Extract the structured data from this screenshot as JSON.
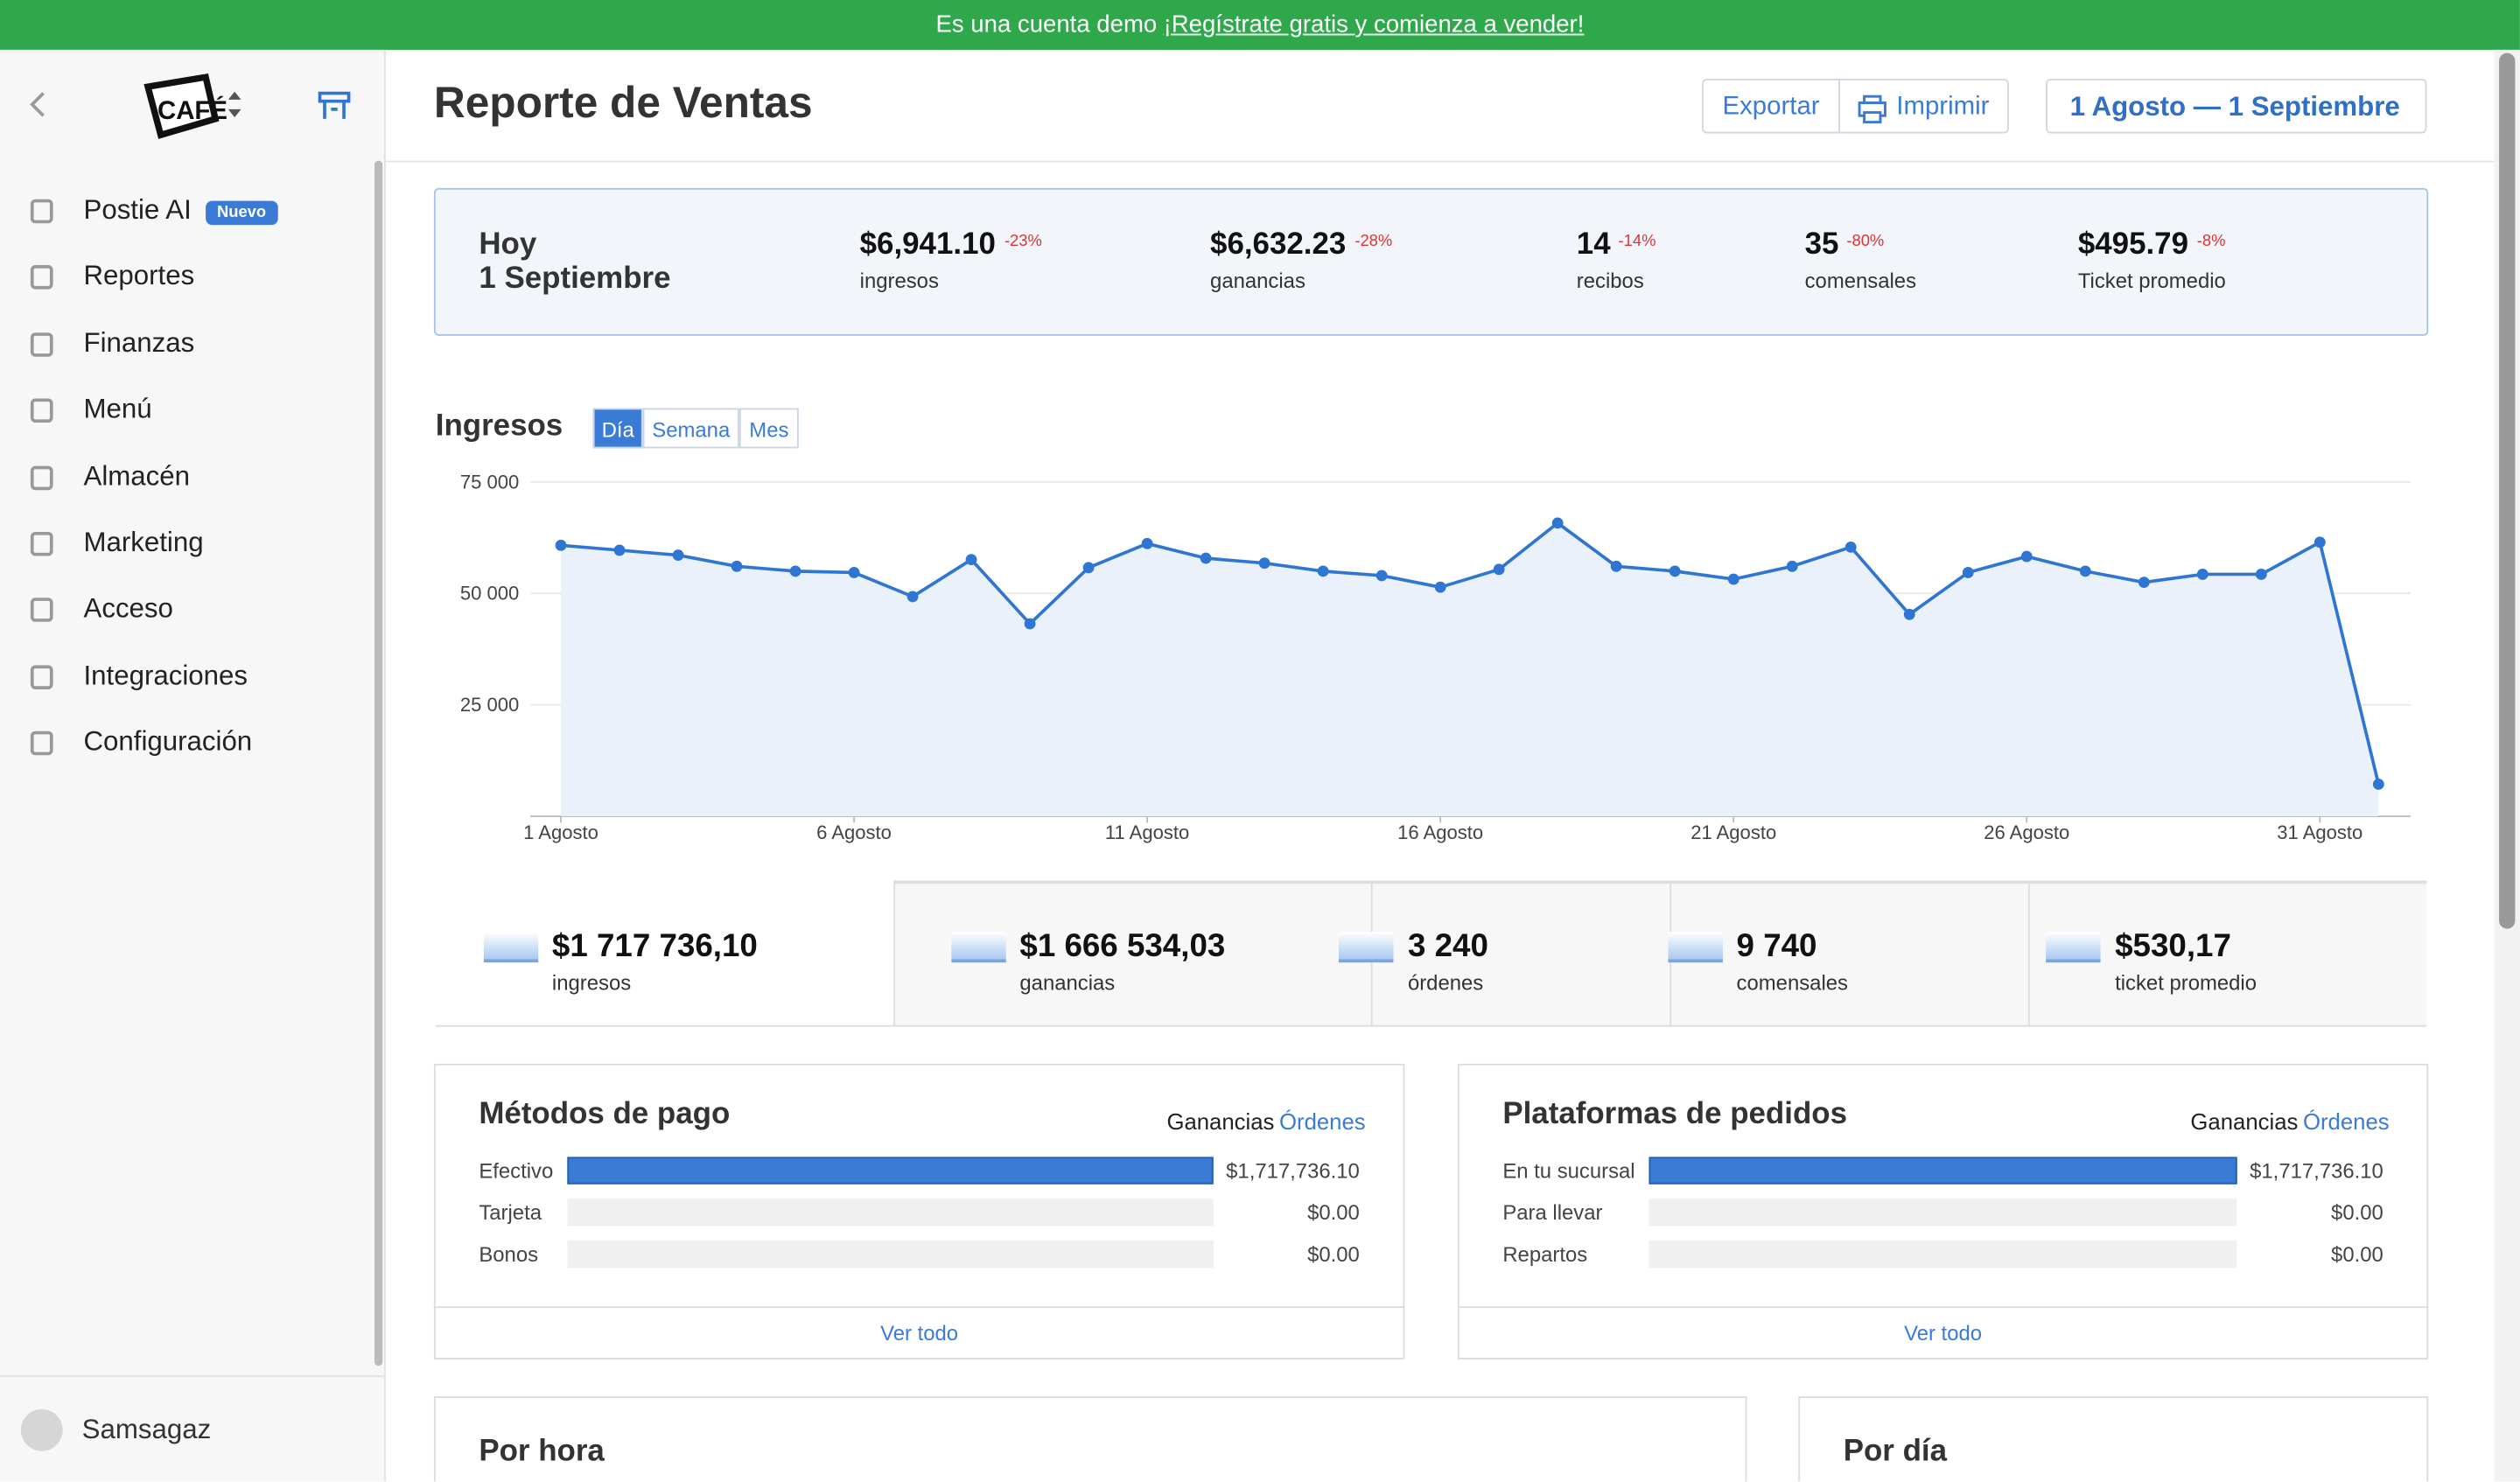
{
  "banner": {
    "text": "Es una cuenta demo",
    "link": "¡Regístrate gratis y comienza a vender!"
  },
  "sidebar": {
    "nav": [
      {
        "label": "Postie AI",
        "badge": "Nuevo"
      },
      {
        "label": "Reportes"
      },
      {
        "label": "Finanzas"
      },
      {
        "label": "Menú"
      },
      {
        "label": "Almacén"
      },
      {
        "label": "Marketing"
      },
      {
        "label": "Acceso"
      },
      {
        "label": "Integraciones"
      },
      {
        "label": "Configuración"
      }
    ],
    "user": "Samsagaz"
  },
  "header": {
    "title": "Reporte de Ventas",
    "buttons": [
      "Exportar",
      "Imprimir"
    ],
    "date_range": "1 Agosto — 1 Septiembre"
  },
  "today": {
    "label": "Hoy",
    "date": "1 Septiembre",
    "stats": [
      {
        "value": "$6,941.10",
        "change": "-23%",
        "label": "ingresos"
      },
      {
        "value": "$6,632.23",
        "change": "-28%",
        "label": "ganancias"
      },
      {
        "value": "14",
        "change": "-14%",
        "label": "recibos"
      },
      {
        "value": "35",
        "change": "-80%",
        "label": "comensales"
      },
      {
        "value": "$495.79",
        "change": "-8%",
        "label": "Ticket promedio"
      }
    ]
  },
  "revenue_tabs": [
    "Día",
    "Semana",
    "Mes"
  ],
  "totals": [
    {
      "value": "$1 717 736,10",
      "label": "ingresos"
    },
    {
      "value": "$1 666 534,03",
      "label": "ganancias"
    },
    {
      "value": "3 240",
      "label": "órdenes"
    },
    {
      "value": "9 740",
      "label": "comensales"
    },
    {
      "value": "$530,17",
      "label": "ticket promedio"
    }
  ],
  "panels": [
    {
      "tabs": [
        "Ganancias",
        "Órdenes"
      ],
      "footer": "Ver todo"
    },
    {
      "tabs": [
        "Ganancias",
        "Órdenes"
      ],
      "footer": "Ver todo"
    }
  ],
  "sections": [
    "Por hora",
    "Por día"
  ],
  "chart_data": [
    {
      "type": "line",
      "title": "Ingresos",
      "color": "#2f76d2",
      "categories": [
        "1 Agosto",
        null,
        null,
        null,
        null,
        "6 Agosto",
        null,
        null,
        null,
        null,
        "11 Agosto",
        null,
        null,
        null,
        null,
        "16 Agosto",
        null,
        null,
        null,
        null,
        "21 Agosto",
        null,
        null,
        null,
        null,
        "26 Agosto",
        null,
        null,
        null,
        null,
        "31 Agosto",
        null
      ],
      "values": [
        60800,
        59700,
        58600,
        56100,
        55000,
        54700,
        49300,
        57600,
        43200,
        55800,
        61200,
        57900,
        56800,
        55000,
        54000,
        51400,
        55400,
        65800,
        56100,
        55000,
        53200,
        56100,
        60400,
        45300,
        54700,
        58300,
        55000,
        52500,
        54300,
        54300,
        61500,
        7200
      ],
      "ylim": [
        0,
        75000
      ],
      "yticks": [
        {
          "value": 25000,
          "label": "25 000"
        },
        {
          "value": 50000,
          "label": "50 000"
        },
        {
          "value": 75000,
          "label": "75 000"
        }
      ],
      "grid": true
    },
    {
      "type": "hbar",
      "title": "Métodos de pago",
      "color": "#3a7bd5",
      "categories": [
        "Efectivo",
        "Tarjeta",
        "Bonos"
      ],
      "values": [
        1717736.1,
        0,
        0
      ],
      "value_labels": [
        "$1,717,736.10",
        "$0.00",
        "$0.00"
      ],
      "xlim": [
        0,
        1717736.1
      ]
    },
    {
      "type": "hbar",
      "title": "Plataformas de pedidos",
      "color": "#3a7bd5",
      "categories": [
        "En tu sucursal",
        "Para llevar",
        "Repartos"
      ],
      "values": [
        1717736.1,
        0,
        0
      ],
      "value_labels": [
        "$1,717,736.10",
        "$0.00",
        "$0.00"
      ],
      "xlim": [
        0,
        1717736.1
      ]
    }
  ]
}
